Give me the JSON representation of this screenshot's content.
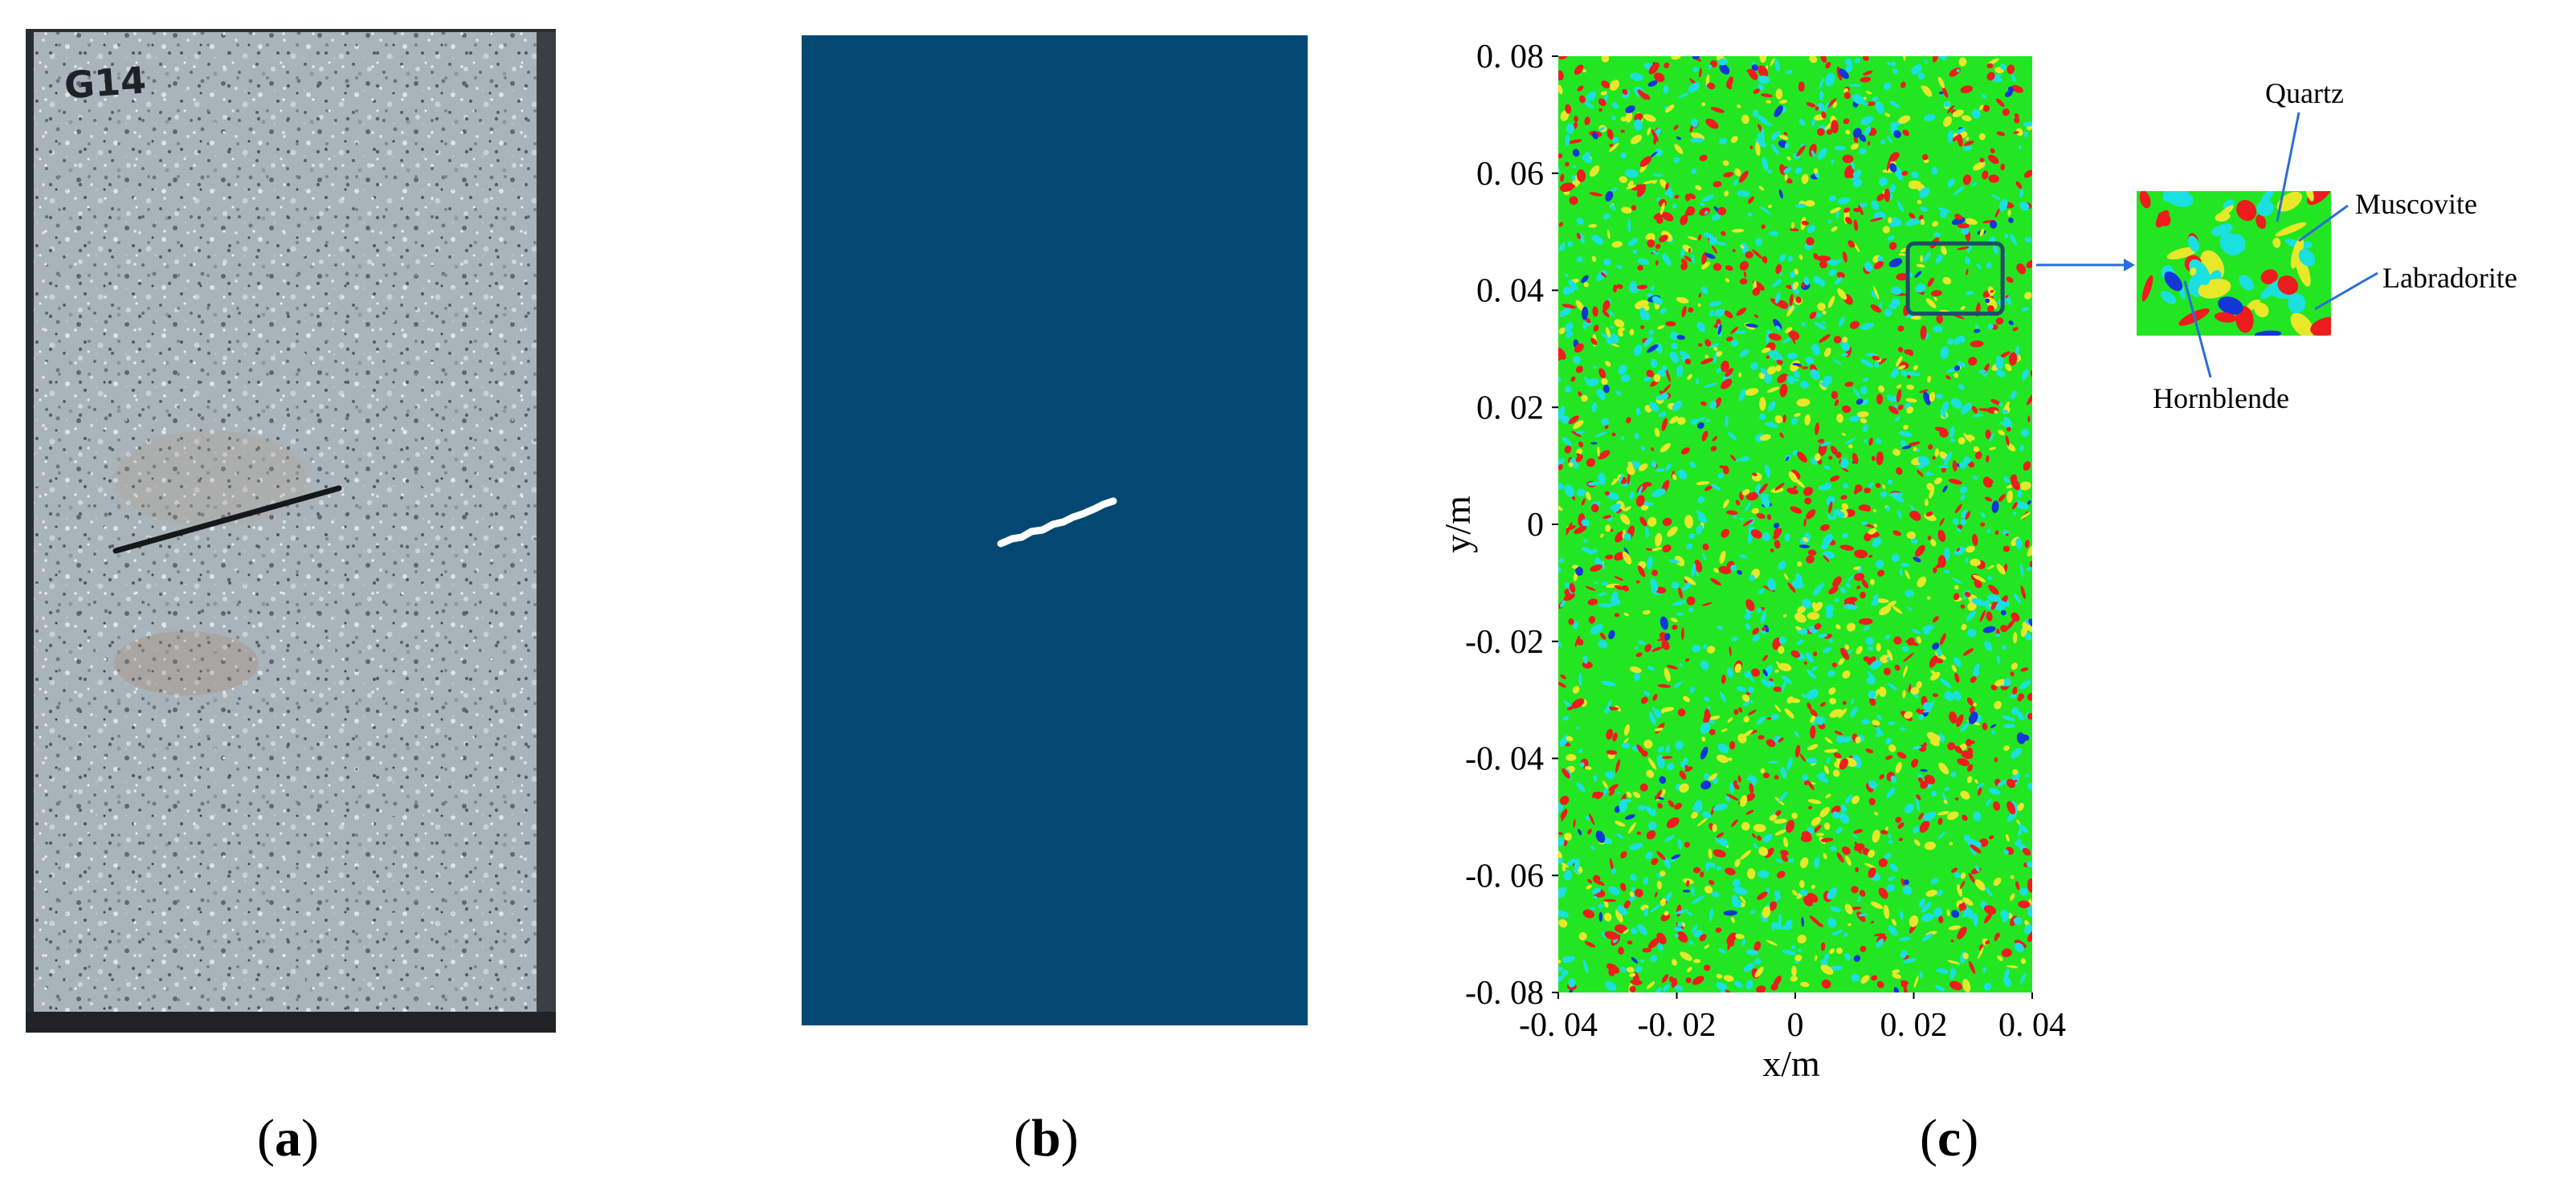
{
  "panels": {
    "a": {
      "sample_label": "G14",
      "caption_open": "(",
      "caption_letter": "a",
      "caption_close": ")"
    },
    "b": {
      "caption_open": "(",
      "caption_letter": "b",
      "caption_close": ")",
      "background_color": "#034872",
      "crack_color": "#ffffff"
    },
    "c": {
      "caption_open": "(",
      "caption_letter": "c",
      "caption_close": ")",
      "minerals": [
        {
          "name": "Quartz",
          "color": "#ee1c1c"
        },
        {
          "name": "Muscovite",
          "color": "#1be0e0"
        },
        {
          "name": "Labradorite",
          "color": "#22e622"
        },
        {
          "name": "Hornblende",
          "color": "#1236d8"
        }
      ]
    }
  },
  "chart_data": {
    "type": "heatmap",
    "xlabel": "x/m",
    "ylabel": "y/m",
    "xlim": [
      -0.04,
      0.04
    ],
    "ylim": [
      -0.08,
      0.08
    ],
    "x_ticks": [
      -0.04,
      -0.02,
      0,
      0.02,
      0.04
    ],
    "y_ticks": [
      -0.08,
      -0.06,
      -0.04,
      -0.02,
      0,
      0.02,
      0.04,
      0.06,
      0.08
    ],
    "x_tick_labels": [
      "-0. 04",
      "-0. 02",
      "0",
      "0. 02",
      "0. 04"
    ],
    "y_tick_labels": [
      "-0. 08",
      "-0. 06",
      "-0. 04",
      "-0. 02",
      "0",
      "0. 02",
      "0. 04",
      "0. 06",
      "0. 08"
    ],
    "zoom_region": {
      "x": [
        0.019,
        0.035
      ],
      "y": [
        0.036,
        0.048
      ]
    },
    "base_color": "#22e622"
  }
}
